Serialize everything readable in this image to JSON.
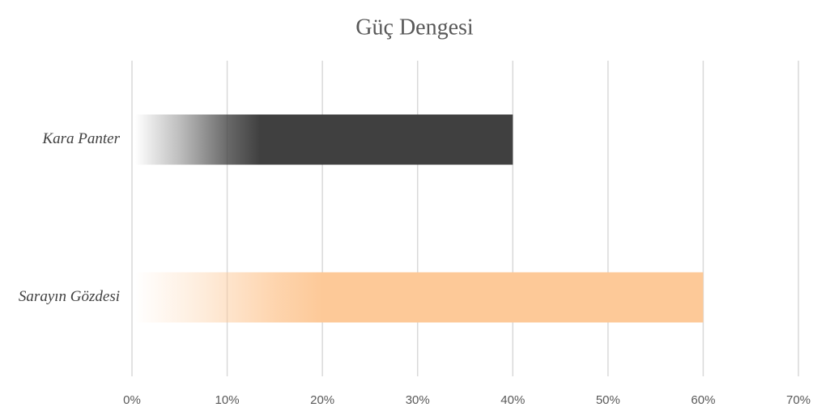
{
  "chart_data": {
    "type": "barh",
    "title": "Güç Dengesi",
    "categories": [
      "Kara Panter",
      "Sarayın Gözdesi"
    ],
    "values": [
      40,
      60
    ],
    "colors": [
      "#404040",
      "#fdc998"
    ],
    "xlim": [
      0,
      70
    ],
    "xticks": [
      {
        "value": 0,
        "label": "0%"
      },
      {
        "value": 10,
        "label": "10%"
      },
      {
        "value": 20,
        "label": "20%"
      },
      {
        "value": 30,
        "label": "30%"
      },
      {
        "value": 40,
        "label": "40%"
      },
      {
        "value": 50,
        "label": "50%"
      },
      {
        "value": 60,
        "label": "60%"
      },
      {
        "value": 70,
        "label": "70%"
      }
    ],
    "grid": true
  }
}
